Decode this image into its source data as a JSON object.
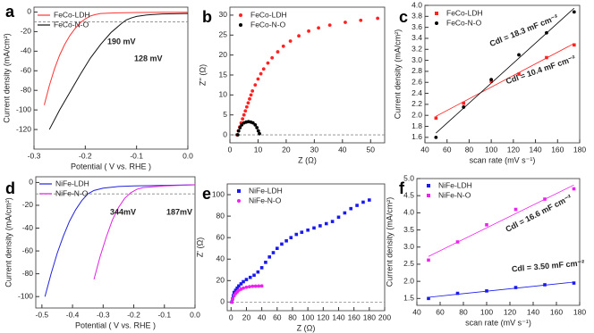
{
  "chart_data": [
    {
      "type": "line",
      "panel_label": "a",
      "xlabel": "Potential ( V vs. RHE )",
      "ylabel": "Current density (mA/cm²)",
      "xlim": [
        -0.3,
        0.0
      ],
      "ylim": [
        -140,
        5
      ],
      "xticks": [
        -0.3,
        -0.2,
        -0.1,
        {
          "value": 0,
          "label": "0.0"
        }
      ],
      "yticks": [
        0,
        -20,
        -40,
        -60,
        -80,
        -100,
        -120
      ],
      "reference_line": -10,
      "series": [
        {
          "name": "FeCo-LDH",
          "color": "#ff3333",
          "x": [
            -0.28,
            -0.27,
            -0.26,
            -0.25,
            -0.24,
            -0.23,
            -0.22,
            -0.21,
            -0.2,
            -0.19,
            -0.18,
            -0.17,
            -0.15,
            -0.1,
            -0.05,
            0.0
          ],
          "values": [
            -95,
            -75,
            -58,
            -44,
            -33,
            -24,
            -17,
            -11,
            -7,
            -4,
            -2.5,
            -1.5,
            -1,
            -0.5,
            -0.3,
            -0.2
          ]
        },
        {
          "name": "FeCo-N-O",
          "color": "#111111",
          "x": [
            -0.27,
            -0.25,
            -0.23,
            -0.21,
            -0.19,
            -0.17,
            -0.15,
            -0.13,
            -0.12,
            -0.11,
            -0.1,
            -0.08,
            -0.05,
            0.0
          ],
          "values": [
            -120,
            -100,
            -82,
            -64,
            -47,
            -33,
            -21,
            -12,
            -8,
            -6,
            -4.5,
            -3,
            -2,
            -1.5
          ]
        }
      ],
      "annotations": [
        {
          "text": "190 mV",
          "color": "#ff3333"
        },
        {
          "text": "128 mV",
          "color": "#111111"
        }
      ]
    },
    {
      "type": "scatter",
      "panel_label": "b",
      "xlabel": "Z (Ω)",
      "ylabel": "Z'' (Ω)",
      "xlim": [
        0,
        55
      ],
      "ylim": [
        -2,
        32
      ],
      "xticks": [
        0,
        10,
        20,
        30,
        40,
        50
      ],
      "yticks": [
        0,
        5,
        10,
        15,
        20,
        25,
        30
      ],
      "reference_line": 0,
      "series": [
        {
          "name": "FeCo-LDH",
          "color": "#ff2222",
          "marker": "circle",
          "x": [
            2.5,
            3,
            3.5,
            4,
            4.5,
            5,
            5.5,
            6,
            6.5,
            7,
            7.5,
            8,
            9,
            10,
            11,
            12,
            13.5,
            15,
            17,
            19,
            21.5,
            24.5,
            28,
            31.5,
            35.5,
            41,
            46.5,
            52.5
          ],
          "values": [
            0,
            1,
            2,
            3,
            4,
            5,
            6,
            7,
            8,
            9,
            10,
            11,
            12.5,
            14,
            15.3,
            16.5,
            18,
            19.3,
            20.8,
            22.2,
            23.5,
            24.8,
            26,
            26.8,
            27.5,
            28.2,
            28.7,
            29.2
          ]
        },
        {
          "name": "FeCo-N-O",
          "color": "#000000",
          "marker": "circle",
          "x": [
            2.8,
            3.1,
            3.6,
            4.2,
            5,
            5.8,
            6.6,
            7.4,
            8.2,
            9,
            9.6,
            10.1,
            10.5
          ],
          "values": [
            0,
            1,
            1.8,
            2.5,
            3,
            3.2,
            3.3,
            3.2,
            3,
            2.5,
            1.8,
            1,
            0.3
          ]
        }
      ]
    },
    {
      "type": "scatter",
      "panel_label": "c",
      "xlabel": "scan rate (mV s⁻¹)",
      "ylabel": "Current density (mA/cm²)",
      "xlim": [
        40,
        180
      ],
      "ylim": [
        1.5,
        4.0
      ],
      "xticks": [
        40,
        60,
        80,
        100,
        120,
        140,
        160,
        180
      ],
      "yticks": [
        1.6,
        1.8,
        {
          "value": 2,
          "label": "2.0"
        },
        2.2,
        2.4,
        2.6,
        2.8,
        {
          "value": 3,
          "label": "3.0"
        },
        3.2,
        3.4,
        3.6,
        3.8,
        {
          "value": 4,
          "label": "4.0"
        }
      ],
      "fit": "linear",
      "series": [
        {
          "name": "FeCo-LDH",
          "color": "#ff2222",
          "marker": "square",
          "x": [
            50,
            75,
            100,
            125,
            150,
            175
          ],
          "values": [
            1.95,
            2.22,
            2.62,
            2.75,
            3.05,
            3.28
          ]
        },
        {
          "name": "FeCo-N-O",
          "color": "#000000",
          "marker": "circle",
          "x": [
            50,
            75,
            100,
            125,
            150,
            175
          ],
          "values": [
            1.6,
            2.15,
            2.65,
            3.1,
            3.5,
            3.88
          ]
        }
      ],
      "annotations": [
        {
          "text": "Cdl = 18.3 mF cm⁻²",
          "color": "#111111"
        },
        {
          "text": "Cdl = 10.4 mF cm⁻²",
          "color": "#111111"
        }
      ]
    },
    {
      "type": "line",
      "panel_label": "d",
      "xlabel": "Potential ( V vs. RHE )",
      "ylabel": "Current density (mA/cm²)",
      "xlim": [
        -0.52,
        0.0
      ],
      "ylim": [
        -110,
        5
      ],
      "xticks": [
        -0.5,
        -0.4,
        -0.3,
        -0.2,
        -0.1,
        {
          "value": 0,
          "label": "0.0"
        }
      ],
      "yticks": [
        0,
        -20,
        -40,
        -60,
        -80,
        -100
      ],
      "reference_line": -10,
      "series": [
        {
          "name": "NiFe-LDH",
          "color": "#2222dd",
          "x": [
            -0.49,
            -0.47,
            -0.45,
            -0.43,
            -0.41,
            -0.39,
            -0.37,
            -0.35,
            -0.33,
            -0.3,
            -0.25,
            -0.2,
            -0.1,
            0.0
          ],
          "values": [
            -100,
            -80,
            -62,
            -47,
            -34,
            -24,
            -16,
            -10,
            -7,
            -5,
            -3.5,
            -3,
            -2.5,
            -2
          ]
        },
        {
          "name": "NiFe-N-O",
          "color": "#e020e0",
          "x": [
            -0.33,
            -0.31,
            -0.29,
            -0.27,
            -0.25,
            -0.23,
            -0.21,
            -0.19,
            -0.17,
            -0.1,
            0.0
          ],
          "values": [
            -85,
            -65,
            -48,
            -33,
            -22,
            -14,
            -9,
            -6,
            -4.5,
            -3,
            -2
          ]
        }
      ],
      "annotations": [
        {
          "text": "344mV",
          "color": "#2222dd"
        },
        {
          "text": "187mV",
          "color": "#e020e0"
        }
      ]
    },
    {
      "type": "scatter",
      "panel_label": "e",
      "xlabel": "Z (Ω)",
      "ylabel": "Z' (Ω)",
      "xlim": [
        -5,
        200
      ],
      "ylim": [
        -8,
        110
      ],
      "xticks": [
        0,
        20,
        40,
        60,
        80,
        100,
        120,
        140,
        160,
        180,
        200
      ],
      "yticks": [
        0,
        20,
        40,
        60,
        80,
        100
      ],
      "reference_line": 0,
      "series": [
        {
          "name": "NiFe-LDH",
          "color": "#1a1aee",
          "marker": "square",
          "x": [
            1,
            2,
            3,
            4,
            6,
            8,
            10,
            13,
            16,
            20,
            25,
            30,
            35,
            40,
            45,
            50,
            55,
            60,
            66,
            72,
            78,
            85,
            92,
            100,
            108,
            116,
            124,
            132,
            140,
            148,
            156,
            164,
            172,
            180
          ],
          "values": [
            0,
            3,
            6,
            9,
            11,
            13,
            15,
            17,
            19,
            21,
            23,
            25,
            28,
            32,
            37,
            42,
            46,
            50,
            54,
            57,
            60,
            63,
            65,
            67,
            69,
            71,
            73,
            75,
            79,
            83,
            87,
            90,
            93,
            95
          ]
        },
        {
          "name": "NiFe-N-O",
          "color": "#ee22ee",
          "marker": "circle",
          "x": [
            1,
            2,
            4,
            6,
            8,
            10,
            13,
            16,
            20,
            24,
            28,
            32,
            36,
            40
          ],
          "values": [
            0,
            3,
            6,
            8,
            9.5,
            11,
            12,
            13,
            13.8,
            14.3,
            14.7,
            14.8,
            14.9,
            15
          ]
        }
      ]
    },
    {
      "type": "scatter",
      "panel_label": "f",
      "xlabel": "scan rate (mV s⁻¹)",
      "ylabel": "Current density (mA/cm²)",
      "xlim": [
        40,
        180
      ],
      "ylim": [
        1.3,
        5.0
      ],
      "xticks": [
        40,
        60,
        80,
        100,
        120,
        140,
        160,
        180
      ],
      "yticks": [
        1.5,
        {
          "value": 2,
          "label": "2.0"
        },
        2.5,
        {
          "value": 3,
          "label": "3.0"
        },
        3.5,
        {
          "value": 4,
          "label": "4.0"
        },
        4.5,
        {
          "value": 5,
          "label": "5.0"
        }
      ],
      "fit": "linear",
      "series": [
        {
          "name": "NiFe-LDH",
          "color": "#1a1aee",
          "marker": "square",
          "x": [
            50,
            75,
            100,
            125,
            150,
            175
          ],
          "values": [
            1.5,
            1.65,
            1.72,
            1.82,
            1.9,
            1.95
          ]
        },
        {
          "name": "NiFe-N-O",
          "color": "#ee22ee",
          "marker": "square",
          "x": [
            50,
            75,
            100,
            125,
            150,
            175
          ],
          "values": [
            2.62,
            3.15,
            3.65,
            4.1,
            4.4,
            4.7
          ]
        }
      ],
      "annotations": [
        {
          "text": "Cdl = 16.6 mF cm⁻²",
          "color": "#111111"
        },
        {
          "text": "Cdl = 3.50 mF cm⁻²",
          "color": "#111111"
        }
      ]
    }
  ]
}
